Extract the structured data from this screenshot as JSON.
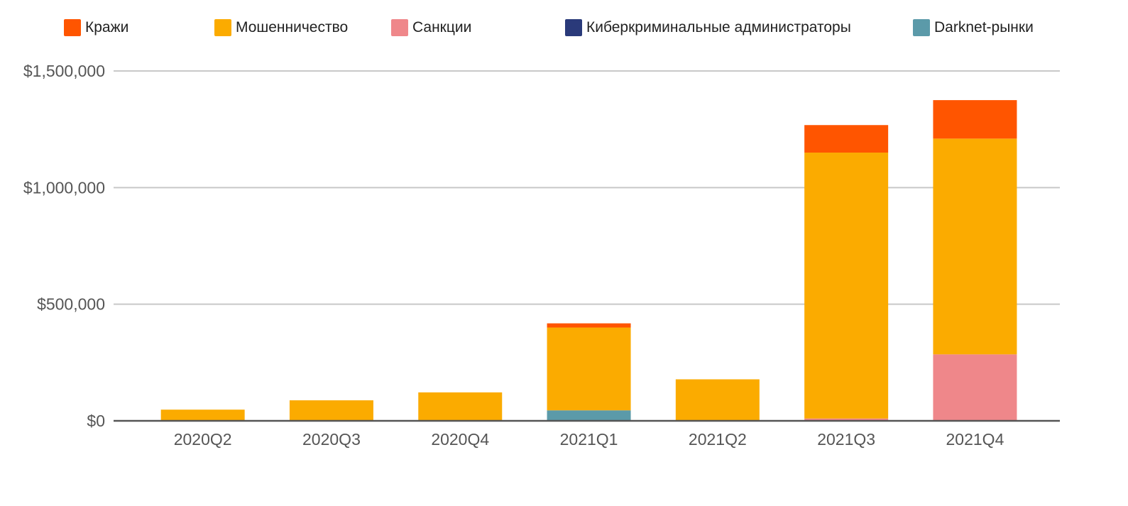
{
  "chart_data": {
    "type": "bar",
    "stacked": true,
    "categories": [
      "2020Q2",
      "2020Q3",
      "2020Q4",
      "2021Q1",
      "2021Q2",
      "2021Q3",
      "2021Q4"
    ],
    "series": [
      {
        "name": "Darknet-рынки",
        "color": "#5b9aa9",
        "values": [
          0,
          0,
          0,
          45000,
          0,
          0,
          0
        ]
      },
      {
        "name": "Киберкриминальные администраторы",
        "color": "#2a3a7a",
        "values": [
          0,
          0,
          0,
          0,
          0,
          0,
          0
        ]
      },
      {
        "name": "Санкции",
        "color": "#ef878a",
        "values": [
          0,
          0,
          0,
          0,
          0,
          10000,
          285000
        ]
      },
      {
        "name": "Мошенничество",
        "color": "#fbab00",
        "values": [
          48000,
          88000,
          122000,
          355000,
          178000,
          1140000,
          925000
        ]
      },
      {
        "name": "Кражи",
        "color": "#ff5500",
        "values": [
          0,
          0,
          0,
          18000,
          0,
          118000,
          165000
        ]
      }
    ],
    "legend_order": [
      "Кражи",
      "Мошенничество",
      "Санкции",
      "Киберкриминальные администраторы",
      "Darknet-рынки"
    ],
    "ylim": [
      0,
      1500000
    ],
    "yticks": [
      0,
      500000,
      1000000,
      1500000
    ],
    "ytick_labels": [
      "$0",
      "$500,000",
      "$1,000,000",
      "$1,500,000"
    ],
    "grid": true,
    "legend_position": "top",
    "title": "",
    "xlabel": "",
    "ylabel": ""
  }
}
